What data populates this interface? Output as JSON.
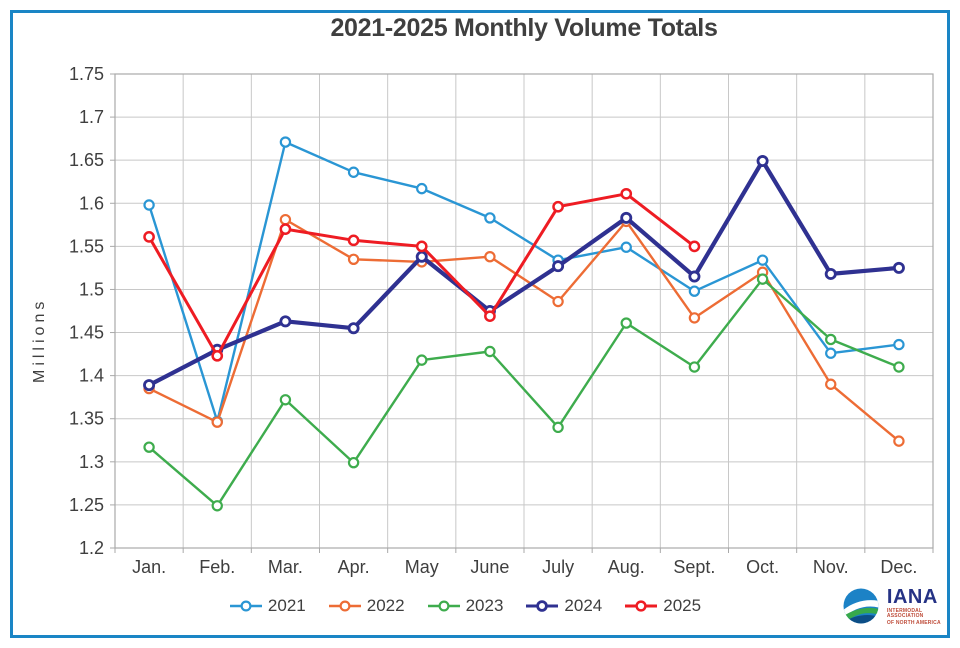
{
  "frame": {
    "border_color": "#1A85C5"
  },
  "title": "2021-2025 Monthly Volume Totals",
  "chart_data": {
    "type": "line",
    "title": "2021-2025 Monthly Volume Totals",
    "xlabel": "",
    "ylabel": "Millions",
    "ylim": [
      1.2,
      1.75
    ],
    "ytick_step": 0.05,
    "ytick_labels": [
      "1.2",
      "1.25",
      "1.3",
      "1.35",
      "1.4",
      "1.45",
      "1.5",
      "1.55",
      "1.6",
      "1.65",
      "1.7",
      "1.75"
    ],
    "categories": [
      "Jan.",
      "Feb.",
      "Mar.",
      "Apr.",
      "May",
      "June",
      "July",
      "Aug.",
      "Sept.",
      "Oct.",
      "Nov.",
      "Dec."
    ],
    "grid": true,
    "legend_position": "bottom",
    "grid_color": "#C8C8C8",
    "axis_color": "#A9A9A9",
    "tick_label_color": "#3F3F3F",
    "series": [
      {
        "name": "2021",
        "color": "#2A96D4",
        "stroke_width": 2.4,
        "marker_stroke": 2.2,
        "values": [
          1.598,
          1.347,
          1.671,
          1.636,
          1.617,
          1.583,
          1.534,
          1.549,
          1.498,
          1.534,
          1.426,
          1.436
        ]
      },
      {
        "name": "2022",
        "color": "#ED6C35",
        "stroke_width": 2.4,
        "marker_stroke": 2.2,
        "values": [
          1.385,
          1.346,
          1.581,
          1.535,
          1.532,
          1.538,
          1.486,
          1.579,
          1.467,
          1.52,
          1.39,
          1.324
        ]
      },
      {
        "name": "2023",
        "color": "#3EAC4D",
        "stroke_width": 2.4,
        "marker_stroke": 2.2,
        "values": [
          1.317,
          1.249,
          1.372,
          1.299,
          1.418,
          1.428,
          1.34,
          1.461,
          1.41,
          1.512,
          1.442,
          1.41
        ]
      },
      {
        "name": "2024",
        "color": "#2F3191",
        "stroke_width": 4.2,
        "marker_stroke": 2.8,
        "values": [
          1.389,
          1.43,
          1.463,
          1.455,
          1.538,
          1.475,
          1.527,
          1.583,
          1.515,
          1.649,
          1.518,
          1.525
        ]
      },
      {
        "name": "2025",
        "color": "#EE1C23",
        "stroke_width": 3.0,
        "marker_stroke": 2.5,
        "values": [
          1.561,
          1.423,
          1.57,
          1.557,
          1.55,
          1.469,
          1.596,
          1.611,
          1.55,
          null,
          null,
          null
        ]
      }
    ]
  },
  "logo": {
    "name": "IANA",
    "tagline_line1": "INTERMODAL ASSOCIATION",
    "tagline_line2": "OF NORTH AMERICA",
    "name_color": "#253285",
    "tagline_color": "#BE4B38",
    "globe_blue": "#1C82C6",
    "globe_green": "#37A94C",
    "globe_dark": "#0D4E86"
  }
}
